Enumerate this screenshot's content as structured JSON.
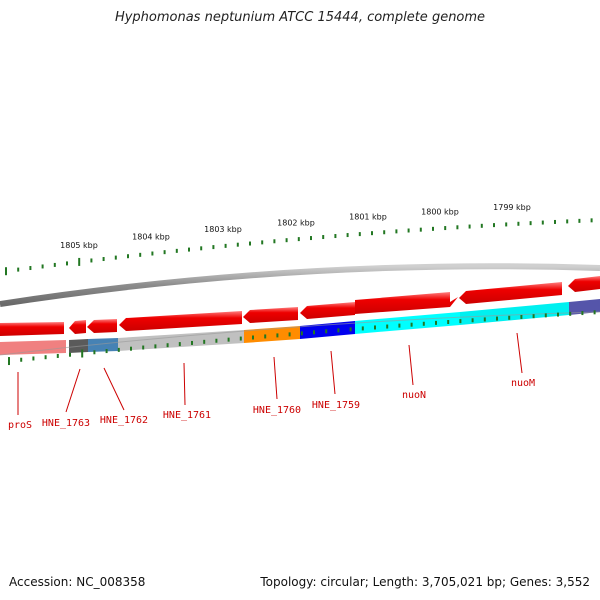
{
  "title": "Hyphomonas neptunium ATCC 15444, complete genome",
  "footer": {
    "accession": "Accession: NC_008358",
    "summary": "Topology: circular; Length: 3,705,021 bp; Genes: 3,552"
  },
  "colors": {
    "forward_gene": "#ee0000",
    "label": "#cc0000",
    "tick": "#227722",
    "backbone": "#888888"
  },
  "scale_labels": [
    "1805 kbp",
    "1804 kbp",
    "1803 kbp",
    "1802 kbp",
    "1801 kbp",
    "1800 kbp",
    "1799 kbp"
  ],
  "genes": [
    {
      "name": "proS",
      "color": "#f08080"
    },
    {
      "name": "HNE_1763",
      "color": "#666666"
    },
    {
      "name": "HNE_1762",
      "color": "#4682b4"
    },
    {
      "name": "HNE_1761",
      "color": "#c0c0c0"
    },
    {
      "name": "HNE_1760",
      "color": "#ff8c00"
    },
    {
      "name": "HNE_1759",
      "color": "#0000ee"
    },
    {
      "name": "nuoN",
      "color": "#00ffff"
    },
    {
      "name": "nuoM",
      "color": "#00e5ee"
    }
  ]
}
